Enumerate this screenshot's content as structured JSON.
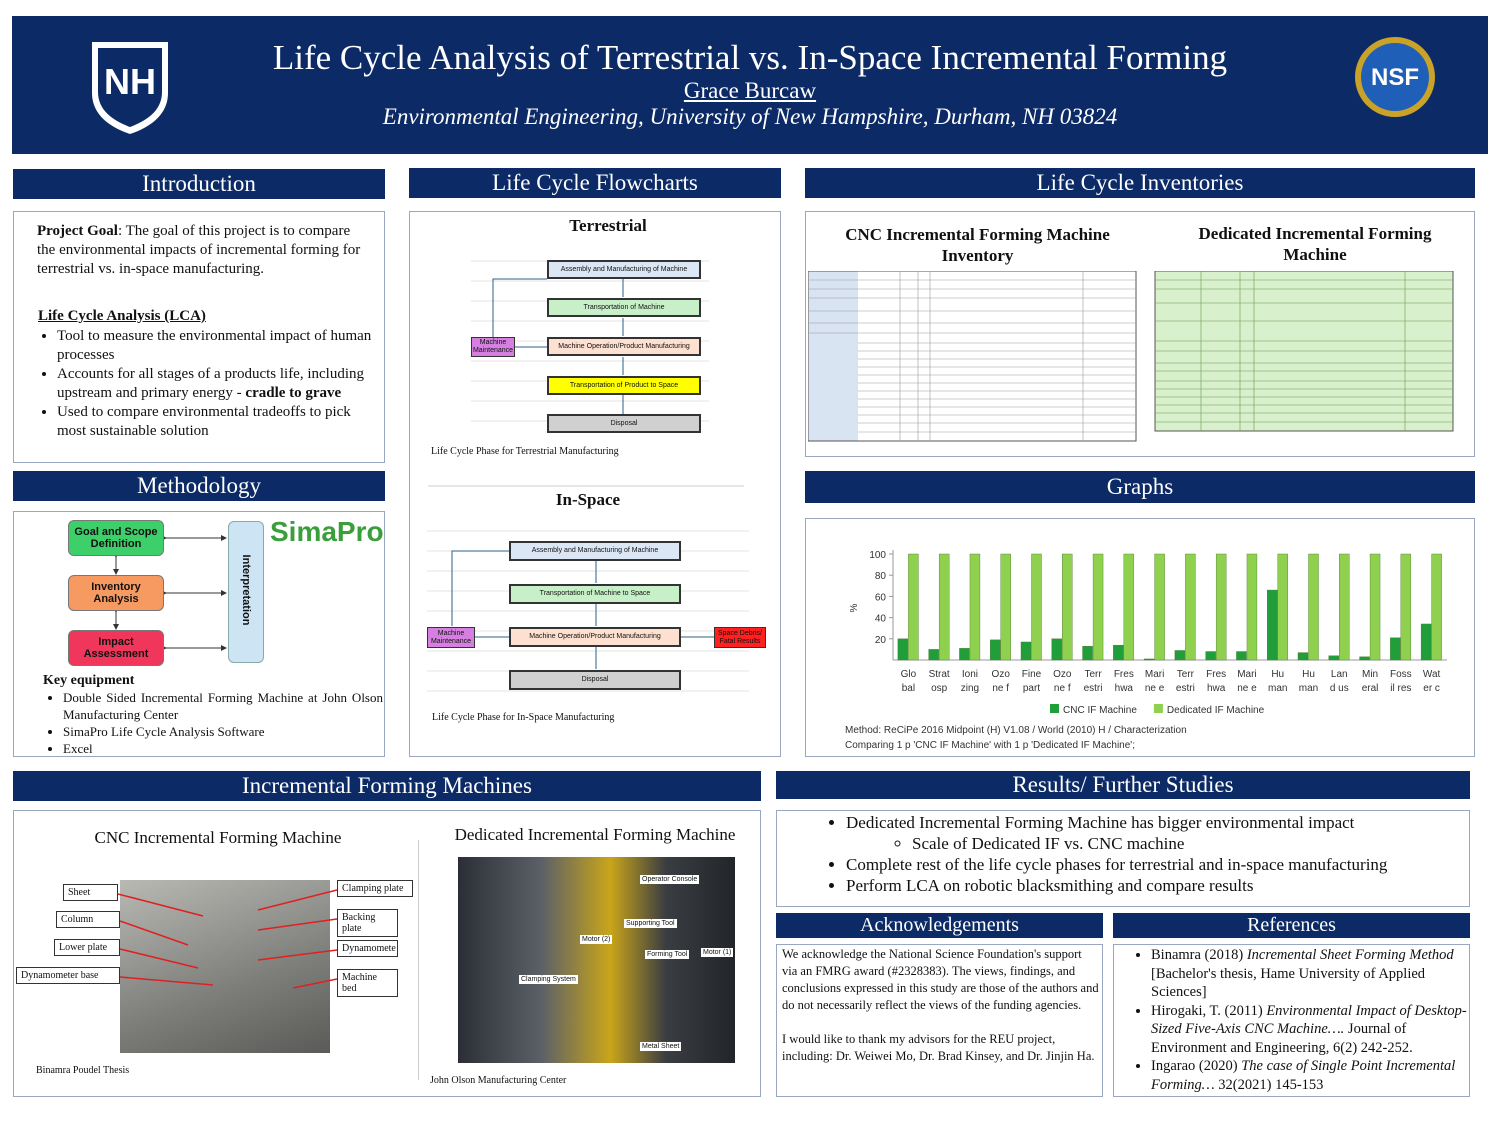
{
  "header": {
    "title": "Life Cycle Analysis of Terrestrial vs. In-Space Incremental Forming",
    "author": "Grace Burcaw",
    "affiliation": "Environmental Engineering, University of New Hampshire, Durham, NH 03824",
    "logo_left": "NH",
    "logo_right": "NSF"
  },
  "introduction": {
    "heading": "Introduction",
    "goal_label": "Project Goal",
    "goal_text": ": The goal of this project is to compare the environmental impacts of incremental forming for terrestrial vs. in-space manufacturing.",
    "lca_heading": "Life Cycle Analysis (LCA)",
    "bullets": [
      "Tool to measure the environmental impact of human processes",
      "Accounts for all stages of a products life, including upstream and primary energy  -",
      "Used to compare environmental tradeoffs to pick most sustainable solution"
    ],
    "bullet_bold": "cradle to grave"
  },
  "methodology": {
    "heading": "Methodology",
    "steps": [
      "Goal and Scope Definition",
      "Inventory Analysis",
      "Impact Assessment"
    ],
    "interpretation": "Interpretation",
    "software": "SimaPro",
    "equipment_label": "Key equipment",
    "equipment": [
      "Double Sided Incremental Forming Machine at John Olson Manufacturing Center",
      "SimaPro Life Cycle Analysis Software",
      "Excel"
    ]
  },
  "flowcharts": {
    "heading": "Life Cycle Flowcharts",
    "terrestrial": {
      "title": "Terrestrial",
      "boxes": [
        "Assembly and Manufacturing of Machine",
        "Transportation of Machine",
        "Machine Operation/Product Manufacturing",
        "Transportation of Product to Space",
        "Disposal"
      ],
      "side": "Machine Maintenance",
      "caption": "Life Cycle Phase for Terrestrial Manufacturing"
    },
    "in_space": {
      "title": "In-Space",
      "boxes": [
        "Assembly and Manufacturing of Machine",
        "Transportation of Machine to Space",
        "Machine Operation/Product Manufacturing",
        "Disposal"
      ],
      "side": "Machine Maintenance",
      "side_right": "Space Debris/ Fatal Results",
      "caption": "Life Cycle Phase for In-Space Manufacturing"
    }
  },
  "inventories": {
    "heading": "Life Cycle Inventories",
    "cnc_title": "CNC Incremental Forming Machine Inventory",
    "dedicated_title": "Dedicated Incremental Forming Machine"
  },
  "graphs": {
    "heading": "Graphs",
    "chart": {
      "type": "bar",
      "ylabel": "%",
      "categories": [
        [
          "Glo",
          "bal"
        ],
        [
          "Strat",
          "osp"
        ],
        [
          "Ioni",
          "zing"
        ],
        [
          "Ozo",
          "ne f"
        ],
        [
          "Fine",
          "part"
        ],
        [
          "Ozo",
          "ne f"
        ],
        [
          "Terr",
          "estri"
        ],
        [
          "Fres",
          "hwa"
        ],
        [
          "Mari",
          "ne e"
        ],
        [
          "Terr",
          "estri"
        ],
        [
          "Fres",
          "hwa"
        ],
        [
          "Mari",
          "ne e"
        ],
        [
          "Hu",
          "man"
        ],
        [
          "Hu",
          "man"
        ],
        [
          "Lan",
          "d us"
        ],
        [
          "Min",
          "eral"
        ],
        [
          "Foss",
          "il res"
        ],
        [
          "Wat",
          "er c"
        ]
      ],
      "series": [
        {
          "name": "CNC IF Machine",
          "color": "#1f9e3a",
          "values": [
            20,
            10,
            11,
            19,
            17,
            20,
            13,
            14,
            1,
            9,
            8,
            8,
            66,
            7,
            4,
            3,
            21,
            34
          ]
        },
        {
          "name": "Dedicated IF Machine",
          "color": "#8fd14f",
          "values": [
            100,
            100,
            100,
            100,
            100,
            100,
            100,
            100,
            100,
            100,
            100,
            100,
            100,
            100,
            100,
            100,
            100,
            100
          ]
        }
      ],
      "ylim": [
        0,
        100
      ],
      "yticks": [
        20,
        40,
        60,
        80,
        100
      ],
      "notes": [
        "Method: ReCiPe 2016 Midpoint (H) V1.08 / World (2010) H / Characterization",
        "Comparing 1 p 'CNC IF Machine' with 1 p 'Dedicated IF Machine';"
      ]
    }
  },
  "machines": {
    "heading": "Incremental Forming Machines",
    "cnc": {
      "title": "CNC Incremental Forming Machine",
      "labels": [
        "Sheet",
        "Column",
        "Lower plate",
        "Dynamometer base",
        "Clamping plate",
        "Backing plate",
        "Dynamomete",
        "Machine bed"
      ],
      "caption": "Binamra Poudel Thesis"
    },
    "dedicated": {
      "title": "Dedicated Incremental Forming Machine",
      "labels": [
        "Operator Console",
        "Supporting Tool",
        "Motor (2)",
        "Forming Tool",
        "Motor (1)",
        "Clamping System",
        "Metal Sheet"
      ],
      "caption": "John Olson Manufacturing Center"
    }
  },
  "results": {
    "heading": "Results/ Further Studies",
    "bullets": [
      {
        "text": "Dedicated Incremental Forming Machine has bigger environmental impact",
        "sub": [
          "Scale of Dedicated IF vs. CNC machine"
        ]
      },
      {
        "text": "Complete rest of the life cycle phases for terrestrial and in-space manufacturing"
      },
      {
        "text": "Perform LCA on robotic blacksmithing and compare results"
      }
    ]
  },
  "acknowledgements": {
    "heading": "Acknowledgements",
    "paragraphs": [
      "We acknowledge the National Science Foundation's support via an FMRG award (#2328383). The views, findings, and conclusions expressed in this study are those of the authors and do not necessarily reflect the views of the funding agencies.",
      "I would like to thank my advisors for the REU project, including: Dr. Weiwei Mo, Dr. Brad Kinsey, and Dr. Jinjin Ha."
    ]
  },
  "references": {
    "heading": "References",
    "items": [
      {
        "lead": "Binamra (2018) ",
        "italic": "Incremental Sheet Forming Method",
        "rest": " [Bachelor's thesis, Hame University of Applied Sciences]"
      },
      {
        "lead": "Hirogaki, T. (2011) ",
        "italic": "Environmental Impact of Desktop-Sized Five-Axis CNC Machine….",
        "rest": " Journal of Environment and Engineering, 6(2) 242-252."
      },
      {
        "lead": "Ingarao (2020) ",
        "italic": "The case of Single Point Incremental Forming…",
        "rest": " 32(2021) 145-153"
      }
    ]
  }
}
